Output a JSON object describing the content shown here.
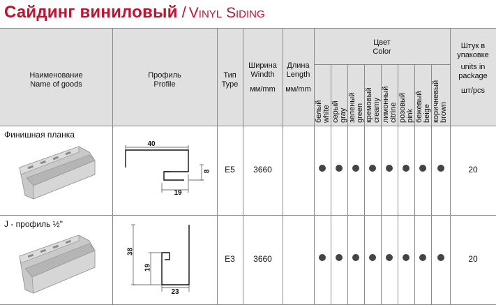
{
  "title": {
    "ru": "Сайдинг виниловый",
    "sep": "/",
    "en": "Vinyl Siding"
  },
  "header": {
    "name_ru": "Наименование",
    "name_en": "Name of goods",
    "profile_ru": "Профиль",
    "profile_en": "Profile",
    "type_ru": "Тип",
    "type_en": "Type",
    "width_ru": "Ширина",
    "width_en": "Windth",
    "width_unit": "мм/mm",
    "length_ru": "Длина",
    "length_en": "Length",
    "length_unit": "мм/mm",
    "color_ru": "Цвет",
    "color_en": "Color",
    "units_1": "Штук в",
    "units_2": "упаковке",
    "units_3": "units in",
    "units_4": "package",
    "units_5": "шт/pcs",
    "colors": [
      {
        "ru": "белый",
        "en": "white"
      },
      {
        "ru": "серый",
        "en": "gray"
      },
      {
        "ru": "зеленый",
        "en": "green"
      },
      {
        "ru": "кремовый",
        "en": "creamy"
      },
      {
        "ru": "лимонный",
        "en": "citrine"
      },
      {
        "ru": "розовый",
        "en": "pink"
      },
      {
        "ru": "бежевый",
        "en": "beige"
      },
      {
        "ru": "коричневый",
        "en": "brown"
      }
    ]
  },
  "rows": [
    {
      "name": "Финишная планка",
      "type": "E5",
      "width": "3660",
      "length": "",
      "pcs": "20",
      "dims": {
        "a": "40",
        "b": "8",
        "c": "19"
      }
    },
    {
      "name": "J - профиль ½\"",
      "type": "E3",
      "width": "3660",
      "length": "",
      "pcs": "20",
      "dims": {
        "a": "38",
        "b": "19",
        "c": "23"
      }
    }
  ],
  "colors": {
    "title": "#c8102e",
    "header_bg": "#e0e0e0",
    "grid": "#8a8a8a",
    "dot": "#444444"
  }
}
